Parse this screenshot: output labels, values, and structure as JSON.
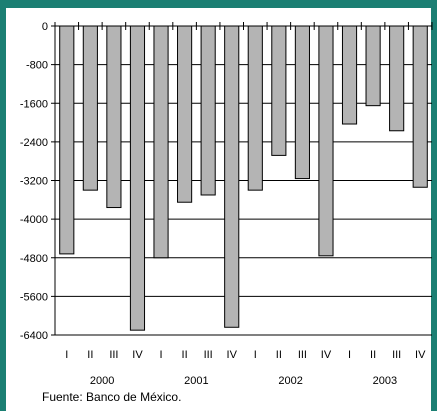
{
  "chart_data": {
    "type": "bar",
    "title": "",
    "xlabel": "",
    "ylabel": "",
    "ylim": [
      -6400,
      0
    ],
    "yticks": [
      0,
      -800,
      -1600,
      -2400,
      -3200,
      -4000,
      -4800,
      -5600,
      -6400
    ],
    "ytick_labels": [
      "0",
      "-800",
      "-1600",
      "-2400",
      "-3200",
      "-4000",
      "-4800",
      "-5600",
      "-6400"
    ],
    "categories": [
      "I",
      "II",
      "III",
      "IV",
      "I",
      "II",
      "III",
      "IV",
      "I",
      "II",
      "III",
      "IV",
      "I",
      "II",
      "III",
      "IV"
    ],
    "year_groups": [
      {
        "label": "2000",
        "quarters": 4
      },
      {
        "label": "2001",
        "quarters": 4
      },
      {
        "label": "2002",
        "quarters": 4
      },
      {
        "label": "2003",
        "quarters": 4
      }
    ],
    "values": [
      -4720,
      -3400,
      -3760,
      -6300,
      -4800,
      -3650,
      -3500,
      -6240,
      -3400,
      -2680,
      -3160,
      -4760,
      -2030,
      -1650,
      -2170,
      -3340
    ],
    "grid": true,
    "colors": {
      "bar_fill": "#b4b4b4",
      "bar_stroke": "#000000",
      "frame": "#1b7f73",
      "grid": "#000000"
    }
  },
  "source_note": "Fuente: Banco de México."
}
